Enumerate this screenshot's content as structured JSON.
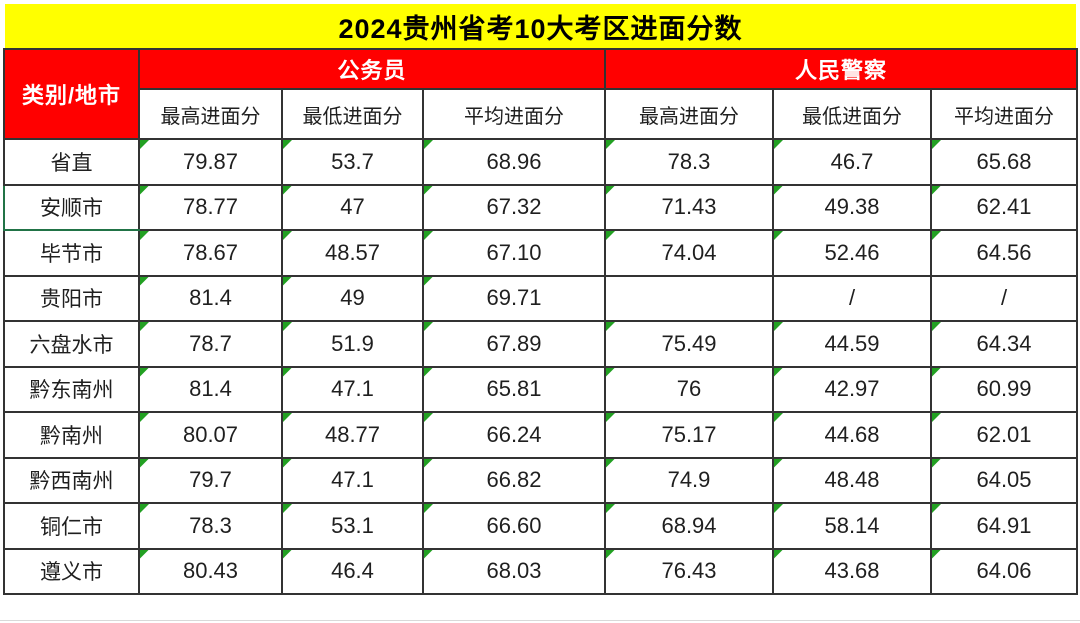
{
  "title": "2024贵州省考10大考区进面分数",
  "chart_data": {
    "type": "table",
    "title": "2024贵州省考10大考区进面分数",
    "corner_header": "类别/地市",
    "column_groups": [
      {
        "label": "公务员",
        "span": 3
      },
      {
        "label": "人民警察",
        "span": 3
      }
    ],
    "sub_headers": [
      "最高进面分",
      "最低进面分",
      "平均进面分",
      "最高进面分",
      "最低进面分",
      "平均进面分"
    ],
    "rows": [
      {
        "region": "省直",
        "values": [
          "79.87",
          "53.7",
          "68.96",
          "78.3",
          "46.7",
          "65.68"
        ]
      },
      {
        "region": "安顺市",
        "values": [
          "78.77",
          "47",
          "67.32",
          "71.43",
          "49.38",
          "62.41"
        ]
      },
      {
        "region": "毕节市",
        "values": [
          "78.67",
          "48.57",
          "67.10",
          "74.04",
          "52.46",
          "64.56"
        ]
      },
      {
        "region": "贵阳市",
        "values": [
          "81.4",
          "49",
          "69.71",
          "",
          "/",
          "/"
        ]
      },
      {
        "region": "六盘水市",
        "values": [
          "78.7",
          "51.9",
          "67.89",
          "75.49",
          "44.59",
          "64.34"
        ]
      },
      {
        "region": "黔东南州",
        "values": [
          "81.4",
          "47.1",
          "65.81",
          "76",
          "42.97",
          "60.99"
        ]
      },
      {
        "region": "黔南州",
        "values": [
          "80.07",
          "48.77",
          "66.24",
          "75.17",
          "44.68",
          "62.01"
        ]
      },
      {
        "region": "黔西南州",
        "values": [
          "79.7",
          "47.1",
          "66.82",
          "74.9",
          "48.48",
          "64.05"
        ]
      },
      {
        "region": "铜仁市",
        "values": [
          "78.3",
          "53.1",
          "66.60",
          "68.94",
          "58.14",
          "64.91"
        ]
      },
      {
        "region": "遵义市",
        "values": [
          "80.43",
          "46.4",
          "68.03",
          "76.43",
          "43.68",
          "64.06"
        ]
      }
    ],
    "missing_value_marker": "/"
  },
  "selection": {
    "region": "安顺市"
  },
  "colors": {
    "title_bg": "#FFFF00",
    "title_text": "#000000",
    "group_header_bg": "#FF0000",
    "group_header_text": "#FFFFFF",
    "grid_line": "#333333",
    "cell_text": "#1F1F1F",
    "error_indicator_green": "#22A022",
    "selection_border_green": "#217346"
  }
}
